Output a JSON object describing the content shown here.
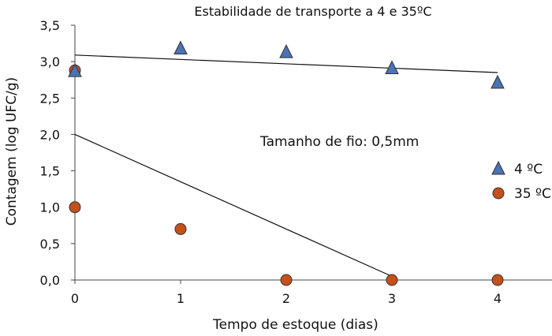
{
  "chart_data": {
    "type": "scatter",
    "title": "Estabilidade de transporte a 4 e 35ºC",
    "xlabel": "Tempo de estoque (dias)",
    "ylabel": "Contagem (log UFC/g)",
    "xlim": [
      0,
      4.5
    ],
    "ylim": [
      0,
      3.5
    ],
    "x_ticks": [
      "0",
      "1",
      "2",
      "3",
      "4"
    ],
    "y_ticks": [
      "0,0",
      "0,5",
      "1,0",
      "1,5",
      "2,0",
      "2,5",
      "3,0",
      "3,5"
    ],
    "annotation": "Tamanho de fio: 0,5mm",
    "grid": false,
    "legend_position": "right",
    "series": [
      {
        "name": "4 ºC",
        "marker": "triangle",
        "color": "#4a72b5",
        "x": [
          0,
          1,
          2,
          3,
          4
        ],
        "y": [
          2.87,
          3.18,
          3.13,
          2.91,
          2.71
        ],
        "trend": {
          "x": [
            0,
            4
          ],
          "y": [
            3.09,
            2.85
          ]
        }
      },
      {
        "name": "35 ºC",
        "marker": "circle",
        "color": "#c4501b",
        "x": [
          0,
          0,
          1,
          2,
          3,
          4
        ],
        "y": [
          2.88,
          1.0,
          0.7,
          0.0,
          0.0,
          0.0
        ],
        "trend": {
          "x": [
            0,
            3
          ],
          "y": [
            2.0,
            0.05
          ]
        }
      }
    ]
  }
}
